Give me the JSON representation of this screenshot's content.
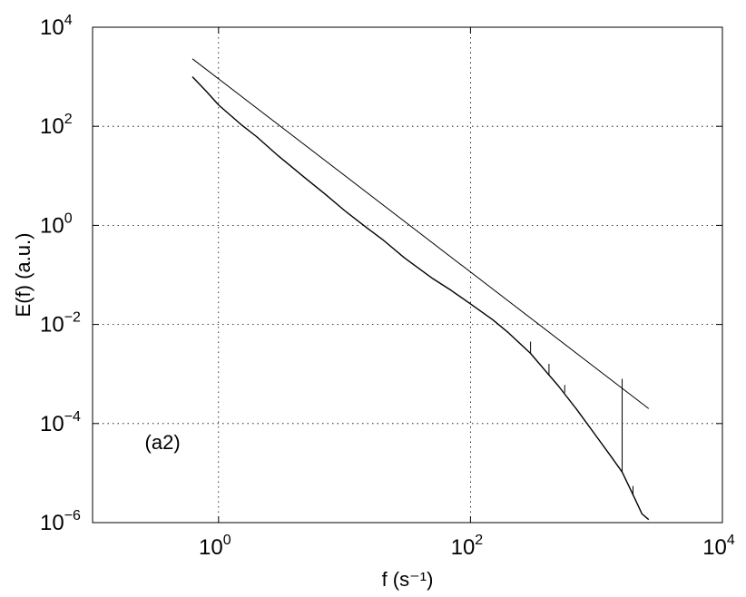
{
  "chart_data": {
    "type": "line",
    "xscale": "log",
    "yscale": "log",
    "xlim": [
      0.1,
      10000
    ],
    "ylim": [
      1e-06,
      10000
    ],
    "grid": true,
    "xlabel": "f (s⁻¹)",
    "ylabel": "E(f) (a.u.)",
    "x_ticks": [
      {
        "value": 1,
        "base": "10",
        "exp": "0"
      },
      {
        "value": 100,
        "base": "10",
        "exp": "2"
      },
      {
        "value": 10000,
        "base": "10",
        "exp": "4"
      }
    ],
    "y_ticks": [
      {
        "value": 1e-06,
        "base": "10",
        "exp": "−6"
      },
      {
        "value": 0.0001,
        "base": "10",
        "exp": "−4"
      },
      {
        "value": 0.01,
        "base": "10",
        "exp": "−2"
      },
      {
        "value": 1,
        "base": "10",
        "exp": "0"
      },
      {
        "value": 100,
        "base": "10",
        "exp": "2"
      },
      {
        "value": 10000,
        "base": "10",
        "exp": "4"
      }
    ],
    "annotation": {
      "text": "(a2)",
      "x": 0.35,
      "y": 5e-05
    },
    "series": [
      {
        "color": "#000000",
        "x": [
          0.62,
          0.8,
          1.0,
          1.5,
          2.0,
          3.0,
          5.0,
          7.0,
          10,
          15,
          20,
          30,
          50,
          70,
          100,
          150,
          200,
          300,
          400,
          500,
          700,
          1000,
          1300,
          1600,
          2000,
          2300,
          2600
        ],
        "y": [
          1000,
          510,
          270,
          110,
          62,
          25,
          8.6,
          4.3,
          2.0,
          0.9,
          0.52,
          0.22,
          0.085,
          0.049,
          0.026,
          0.0125,
          0.0068,
          0.0026,
          0.0011,
          0.00057,
          0.00019,
          5.5e-05,
          2.2e-05,
          1.05e-05,
          3.2e-06,
          1.5e-06,
          1.15e-06
        ],
        "spikes": [
          {
            "x": 300,
            "y_from": 0.0026,
            "y_to": 0.0045
          },
          {
            "x": 420,
            "y_from": 0.00095,
            "y_to": 0.0016
          },
          {
            "x": 560,
            "y_from": 0.00042,
            "y_to": 0.0006
          },
          {
            "x": 1600,
            "y_from": 1.05e-05,
            "y_to": 0.0008
          },
          {
            "x": 1950,
            "y_from": 3.5e-06,
            "y_to": 5.5e-06
          }
        ]
      },
      {
        "color": "#000000",
        "x": [
          0.62,
          2600
        ],
        "y": [
          2300,
          0.0002
        ]
      }
    ]
  }
}
